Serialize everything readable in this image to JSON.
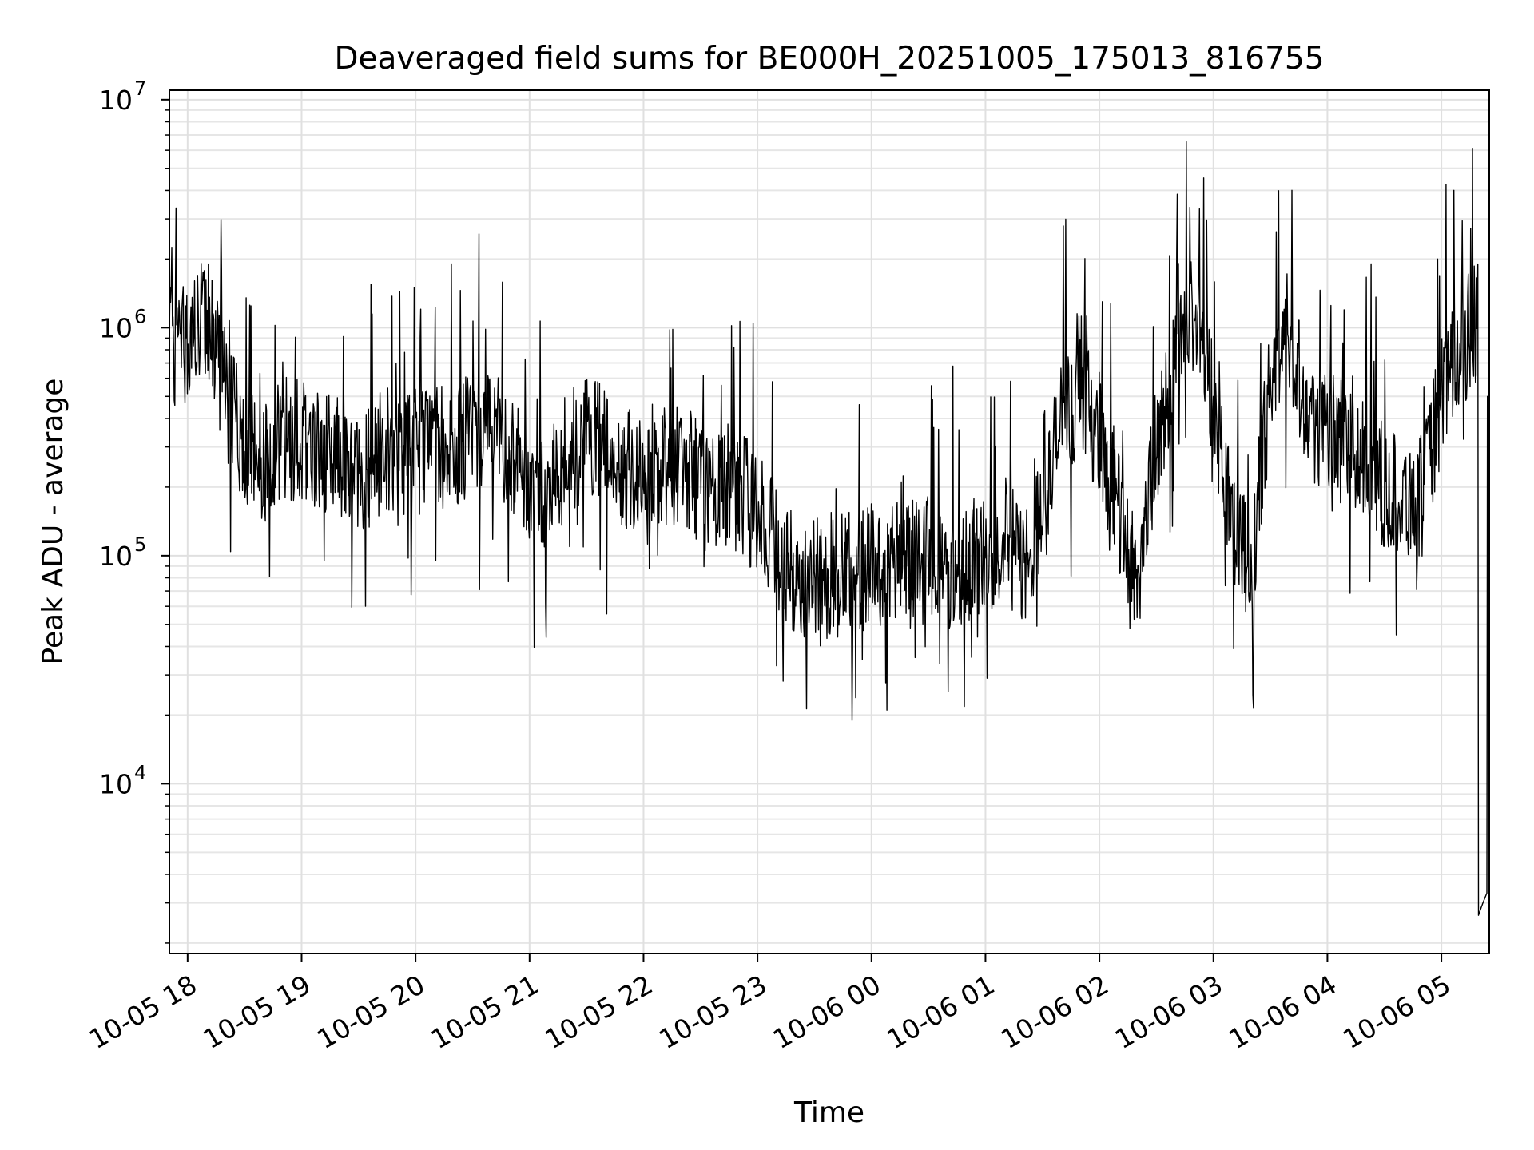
{
  "chart_data": {
    "type": "line",
    "title": "Deaveraged field sums for BE000H_20251005_175013_816755",
    "xlabel": "Time",
    "ylabel": "Peak ADU - average",
    "yscale": "log",
    "ylim": [
      1800,
      11000000
    ],
    "xlim_hours_from_2025_10_05_00_00": [
      17.84,
      29.42
    ],
    "x_tick_labels": [
      "10-05 18",
      "10-05 19",
      "10-05 20",
      "10-05 21",
      "10-05 22",
      "10-05 23",
      "10-06 00",
      "10-06 01",
      "10-06 02",
      "10-06 03",
      "10-06 04",
      "10-06 05"
    ],
    "y_tick_labels": [
      {
        "base": "10",
        "exp": "4"
      },
      {
        "base": "10",
        "exp": "5"
      },
      {
        "base": "10",
        "exp": "6"
      },
      {
        "base": "10",
        "exp": "7"
      }
    ],
    "grid": true,
    "line_color": "#000000",
    "series": [
      {
        "x": [
          "10-05 17:50",
          "10-05 18:00",
          "10-05 18:10",
          "10-05 18:20",
          "10-05 18:30",
          "10-05 18:40",
          "10-05 18:50",
          "10-05 19:00",
          "10-05 19:10",
          "10-05 19:20",
          "10-05 19:30",
          "10-05 19:40",
          "10-05 19:50",
          "10-05 20:00",
          "10-05 20:10",
          "10-05 20:20",
          "10-05 20:30",
          "10-05 20:40",
          "10-05 20:50",
          "10-05 21:00",
          "10-05 21:10",
          "10-05 21:20",
          "10-05 21:30",
          "10-05 21:40",
          "10-05 21:50",
          "10-05 22:00",
          "10-05 22:10",
          "10-05 22:20",
          "10-05 22:30",
          "10-05 22:40",
          "10-05 22:50",
          "10-05 23:00",
          "10-05 23:10",
          "10-05 23:20",
          "10-05 23:30",
          "10-05 23:40",
          "10-05 23:50",
          "10-06 00:00",
          "10-06 00:10",
          "10-06 00:20",
          "10-06 00:30",
          "10-06 00:40",
          "10-06 00:50",
          "10-06 01:00",
          "10-06 01:10",
          "10-06 01:20",
          "10-06 01:30",
          "10-06 01:40",
          "10-06 01:50",
          "10-06 02:00",
          "10-06 02:10",
          "10-06 02:20",
          "10-06 02:30",
          "10-06 02:40",
          "10-06 02:50",
          "10-06 03:00",
          "10-06 03:10",
          "10-06 03:20",
          "10-06 03:30",
          "10-06 03:40",
          "10-06 03:50",
          "10-06 04:00",
          "10-06 04:10",
          "10-06 04:20",
          "10-06 04:30",
          "10-06 04:40",
          "10-06 04:50",
          "10-06 05:00",
          "10-06 05:10",
          "10-06 05:20"
        ],
        "y": [
          800000,
          900000,
          1100000,
          500000,
          300000,
          250000,
          350000,
          280000,
          300000,
          260000,
          220000,
          280000,
          250000,
          300000,
          320000,
          280000,
          350000,
          400000,
          300000,
          200000,
          180000,
          280000,
          320000,
          300000,
          250000,
          200000,
          240000,
          260000,
          200000,
          180000,
          200000,
          150000,
          110000,
          80000,
          85000,
          80000,
          85000,
          90000,
          95000,
          100000,
          100000,
          90000,
          95000,
          100000,
          120000,
          90000,
          150000,
          400000,
          500000,
          350000,
          150000,
          80000,
          300000,
          700000,
          1200000,
          500000,
          150000,
          80000,
          600000,
          1000000,
          400000,
          350000,
          300000,
          250000,
          200000,
          180000,
          180000,
          500000,
          800000,
          1100000
        ]
      }
    ]
  }
}
